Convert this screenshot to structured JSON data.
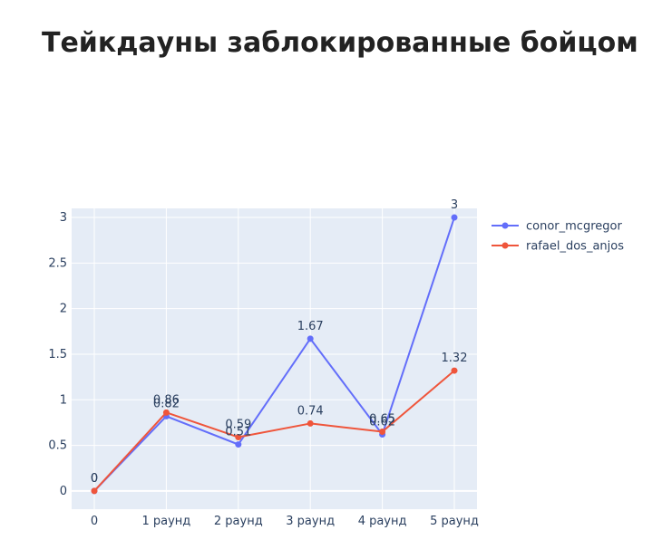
{
  "chart_data": {
    "type": "line",
    "title": "Тейкдауны заблокированные бойцом",
    "categories": [
      "0",
      "1 раунд",
      "2 раунд",
      "3 раунд",
      "4 раунд",
      "5 раунд"
    ],
    "ylim": [
      -0.2,
      3.1
    ],
    "y_ticks": [
      {
        "value": 0,
        "label": "0"
      },
      {
        "value": 0.5,
        "label": "0.5"
      },
      {
        "value": 1,
        "label": "1"
      },
      {
        "value": 1.5,
        "label": "1.5"
      },
      {
        "value": 2,
        "label": "2"
      },
      {
        "value": 2.5,
        "label": "2.5"
      },
      {
        "value": 3,
        "label": "3"
      }
    ],
    "grid": true,
    "legend_position": "right",
    "series": [
      {
        "name": "conor_mcgregor",
        "color": "#636efa",
        "values": [
          0,
          0.82,
          0.51,
          1.67,
          0.62,
          3
        ],
        "labels": [
          "0",
          "0.82",
          "0.51",
          "1.67",
          "0.62",
          "3"
        ]
      },
      {
        "name": "rafael_dos_anjos",
        "color": "#ef553b",
        "values": [
          0,
          0.86,
          0.59,
          0.74,
          0.65,
          1.32
        ],
        "labels": [
          "0",
          "0.86",
          "0.59",
          "0.74",
          "0.65",
          "1.32"
        ]
      }
    ],
    "plot_background": "#e5ecf6"
  }
}
